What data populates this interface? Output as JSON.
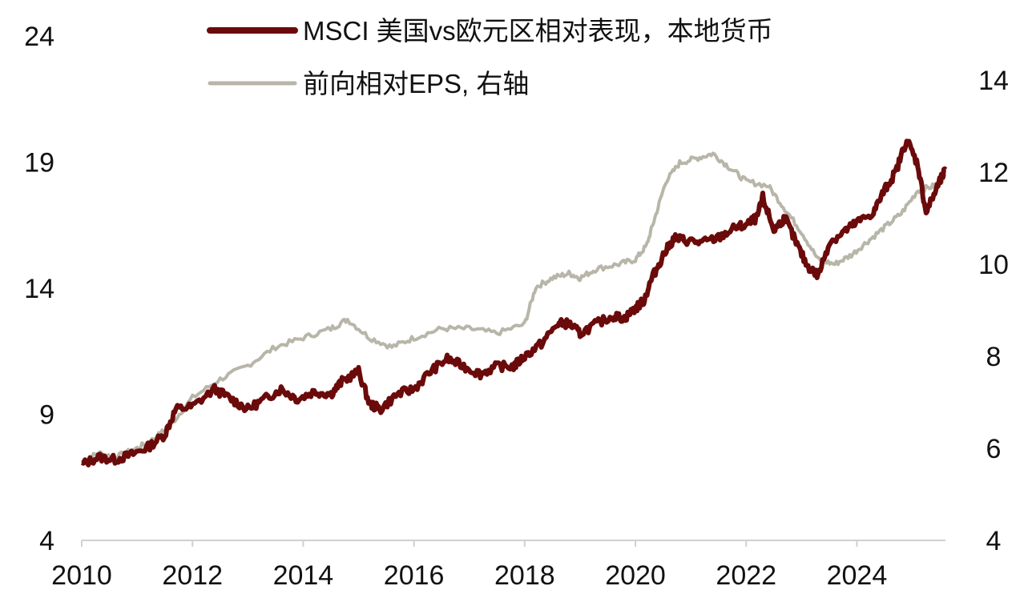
{
  "chart_data": {
    "type": "line",
    "colors": {
      "relative_performance": "#6b0a0a",
      "forward_eps": "#b8b6a8"
    },
    "x_axis": {
      "ticks": [
        "2010",
        "2012",
        "2014",
        "2016",
        "2018",
        "2020",
        "2022",
        "2024"
      ],
      "range": [
        2010,
        2025.6
      ]
    },
    "y_left": {
      "ticks": [
        "24",
        "19",
        "14",
        "9",
        "4"
      ],
      "range": [
        4,
        24
      ]
    },
    "y_right": {
      "ticks": [
        "14",
        "12",
        "10",
        "8",
        "6",
        "4"
      ],
      "range": [
        4,
        14.5
      ]
    },
    "grid": false,
    "legend_placement": "top-center",
    "series": [
      {
        "name": "MSCI 美国vs欧元区相对表现，本地货币",
        "axis": "left",
        "points": [
          [
            2010.0,
            7.0
          ],
          [
            2010.3,
            7.3
          ],
          [
            2010.6,
            7.2
          ],
          [
            2010.9,
            7.4
          ],
          [
            2011.2,
            7.7
          ],
          [
            2011.5,
            8.2
          ],
          [
            2011.7,
            9.2
          ],
          [
            2012.0,
            9.3
          ],
          [
            2012.4,
            10.0
          ],
          [
            2012.7,
            9.6
          ],
          [
            2013.0,
            9.2
          ],
          [
            2013.3,
            9.6
          ],
          [
            2013.6,
            10.0
          ],
          [
            2013.9,
            9.6
          ],
          [
            2014.2,
            9.9
          ],
          [
            2014.5,
            9.8
          ],
          [
            2014.7,
            10.3
          ],
          [
            2015.0,
            10.7
          ],
          [
            2015.2,
            9.4
          ],
          [
            2015.4,
            9.2
          ],
          [
            2015.7,
            9.8
          ],
          [
            2016.0,
            10.0
          ],
          [
            2016.3,
            10.7
          ],
          [
            2016.6,
            11.2
          ],
          [
            2016.9,
            10.9
          ],
          [
            2017.2,
            10.6
          ],
          [
            2017.5,
            10.9
          ],
          [
            2017.8,
            10.9
          ],
          [
            2018.0,
            11.3
          ],
          [
            2018.3,
            11.8
          ],
          [
            2018.6,
            12.6
          ],
          [
            2018.8,
            12.6
          ],
          [
            2019.0,
            12.2
          ],
          [
            2019.3,
            12.6
          ],
          [
            2019.6,
            12.9
          ],
          [
            2019.8,
            12.8
          ],
          [
            2020.0,
            13.2
          ],
          [
            2020.15,
            13.5
          ],
          [
            2020.3,
            14.4
          ],
          [
            2020.5,
            15.3
          ],
          [
            2020.7,
            16.0
          ],
          [
            2020.9,
            15.9
          ],
          [
            2021.2,
            15.8
          ],
          [
            2021.5,
            16.0
          ],
          [
            2021.8,
            16.4
          ],
          [
            2022.0,
            16.5
          ],
          [
            2022.2,
            16.8
          ],
          [
            2022.3,
            17.6
          ],
          [
            2022.5,
            16.3
          ],
          [
            2022.7,
            16.8
          ],
          [
            2022.9,
            15.8
          ],
          [
            2023.1,
            14.9
          ],
          [
            2023.3,
            14.5
          ],
          [
            2023.5,
            15.8
          ],
          [
            2023.8,
            16.3
          ],
          [
            2024.0,
            16.6
          ],
          [
            2024.3,
            17.0
          ],
          [
            2024.5,
            17.9
          ],
          [
            2024.7,
            18.6
          ],
          [
            2024.9,
            19.9
          ],
          [
            2025.1,
            18.9
          ],
          [
            2025.25,
            17.0
          ],
          [
            2025.45,
            18.0
          ],
          [
            2025.6,
            18.7
          ]
        ]
      },
      {
        "name": "前向相对EPS, 右轴",
        "axis": "right",
        "points": [
          [
            2010.0,
            5.7
          ],
          [
            2010.3,
            5.9
          ],
          [
            2010.6,
            5.8
          ],
          [
            2011.0,
            6.0
          ],
          [
            2011.3,
            6.2
          ],
          [
            2011.6,
            6.5
          ],
          [
            2012.0,
            7.1
          ],
          [
            2012.5,
            7.5
          ],
          [
            2013.0,
            7.8
          ],
          [
            2013.5,
            8.2
          ],
          [
            2014.0,
            8.4
          ],
          [
            2014.5,
            8.6
          ],
          [
            2014.8,
            8.8
          ],
          [
            2015.2,
            8.4
          ],
          [
            2015.6,
            8.2
          ],
          [
            2016.0,
            8.4
          ],
          [
            2016.5,
            8.6
          ],
          [
            2017.0,
            8.6
          ],
          [
            2017.5,
            8.5
          ],
          [
            2018.0,
            8.7
          ],
          [
            2018.2,
            9.5
          ],
          [
            2018.5,
            9.7
          ],
          [
            2018.8,
            9.8
          ],
          [
            2019.0,
            9.7
          ],
          [
            2019.3,
            9.9
          ],
          [
            2019.7,
            10.0
          ],
          [
            2020.0,
            10.1
          ],
          [
            2020.2,
            10.4
          ],
          [
            2020.35,
            11.0
          ],
          [
            2020.55,
            11.8
          ],
          [
            2020.8,
            12.2
          ],
          [
            2021.1,
            12.3
          ],
          [
            2021.4,
            12.4
          ],
          [
            2021.7,
            12.1
          ],
          [
            2022.0,
            11.8
          ],
          [
            2022.4,
            11.7
          ],
          [
            2022.7,
            11.2
          ],
          [
            2023.0,
            10.7
          ],
          [
            2023.3,
            10.1
          ],
          [
            2023.6,
            10.0
          ],
          [
            2023.9,
            10.2
          ],
          [
            2024.2,
            10.5
          ],
          [
            2024.5,
            10.8
          ],
          [
            2024.8,
            11.1
          ],
          [
            2025.1,
            11.6
          ],
          [
            2025.4,
            11.7
          ],
          [
            2025.6,
            11.9
          ]
        ]
      }
    ]
  }
}
